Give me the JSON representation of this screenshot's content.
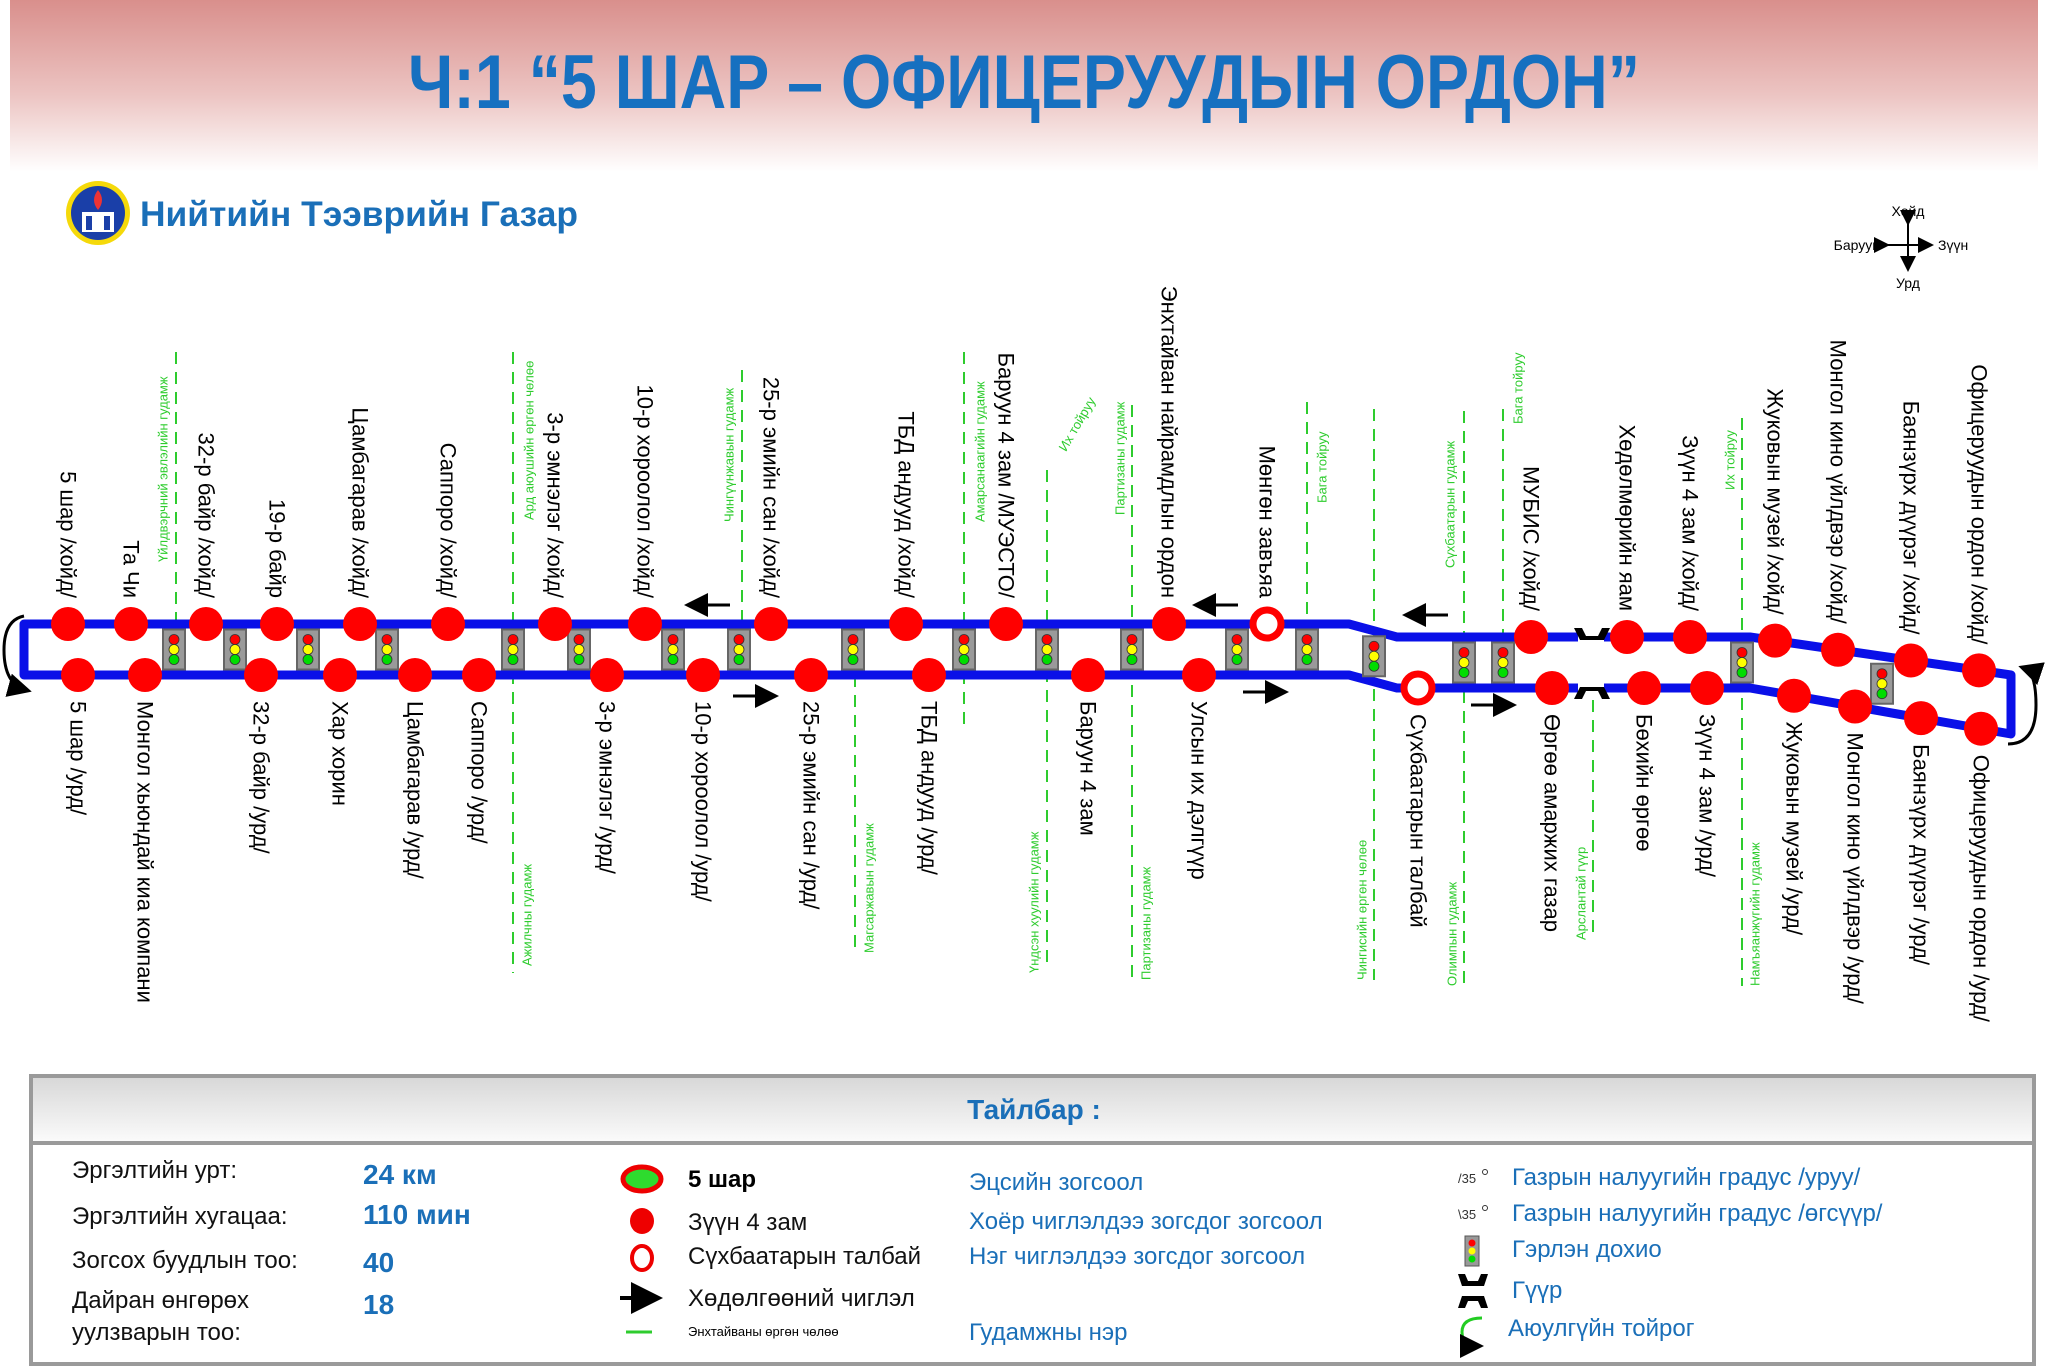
{
  "header": {
    "title": "Ч:1 “5 ШАР – ОФИЦЕРУУДЫН ОРДОН”",
    "organization": "Нийтийн Тээврийн Газар"
  },
  "compass": {
    "north": "Хойд",
    "south": "Урд",
    "west": "Баруун",
    "east": "Зүүн"
  },
  "colors": {
    "route": "#0a10e8",
    "stop": "#ff0000",
    "street_line": "#2ecc2e",
    "title": "#1670c0",
    "legend_text": "#1a6fb8"
  },
  "route": {
    "north_stops": [
      "5 шар /хойд/",
      "Та Чи",
      "32-р байр /хойд/",
      "19-р байр",
      "Цамбагарав /хойд/",
      "Саппоро /хойд/",
      "3-р эмнэлэг /хойд/",
      "10-р хороолол /хойд/",
      "25-р эмийн сан /хойд/",
      "ТБД андууд /хойд/",
      "Баруун 4 зам /МУЭСТО/",
      "Энхтайван найрамдлын ордон",
      "Мөнгөн завъяа",
      "МУБИС /хойд/",
      "Хөдөлмөрийн яам",
      "Зүүн 4 зам /хойд/",
      "Жуковын музей /хойд/",
      "Монгол кино үйлдвэр /хойд/",
      "Баянзүрх дүүрэг /хойд/",
      "Офицеруудын ордон /хойд/"
    ],
    "south_stops": [
      "5 шар /урд/",
      "Монгол хьюндай киа компани",
      "32-р байр /урд/",
      "Хар хорин",
      "Цамбагарав /урд/",
      "Саппоро /урд/",
      "3-р эмнэлэг /урд/",
      "10-р хороолол /урд/",
      "25-р эмийн сан /урд/",
      "ТБД андууд /урд/",
      "Баруун 4 зам",
      "Улсын их дэлгүүр",
      "Сүхбаатарын талбай",
      "Өргөө амаржих газар",
      "Бөхийн өргөө",
      "Зүүн 4 зам /урд/",
      "Жуковын музей /урд/",
      "Монгол кино үйлдвэр /урд/",
      "Баянзүрх дүүрэг /урд/",
      "Офицеруудын ордон /урд/"
    ],
    "streets_top": [
      "Үйлдвэрчний эвлэлийн гудамж",
      "Ард аюушийн өргөн чөлөө",
      "Чингүүнжавын гудамж",
      "Амарсанаагийн гудамж",
      "Их тойруу",
      "Партизаны гудамж",
      "Бага тойруу",
      "Сүхбаатарын гудамж",
      "Бага тойруу",
      "Их тойруу"
    ],
    "streets_bottom": [
      "Ажилчны гудамж",
      "Магсаржавын гудамж",
      "Үндсэн хуулийн гудамж",
      "Партизаны гудамж",
      "Чингисийн өргөн чөлөө",
      "Олимпын гудамж",
      "Арслантай гүүр",
      "Намъяанжүгийн гудамж"
    ]
  },
  "legend": {
    "title": "Тайлбар :",
    "stats": [
      {
        "label": "Эргэлтийн урт:",
        "value": "24 км"
      },
      {
        "label": "Эргэлтийн хугацаа:",
        "value": "110 мин"
      },
      {
        "label": "Зогсох буудлын тоо:",
        "value": "40"
      },
      {
        "label": "Дайран өнгөрөх",
        "label2": "уулзварын тоо:",
        "value": "18"
      }
    ],
    "symbols": [
      {
        "icon": "terminal-stop-icon",
        "label": "5 шар",
        "meaning": "Эцсийн зогсоол"
      },
      {
        "icon": "bidirectional-stop-icon",
        "label": "Зүүн 4 зам",
        "meaning": "Хоёр чиглэлдээ зогсдог зогсоол"
      },
      {
        "icon": "one-way-stop-icon",
        "label": "Сүхбаатарын талбай",
        "meaning": "Нэг чиглэлдээ зогсдог зогсоол"
      },
      {
        "icon": "direction-arrow-icon",
        "label": "Хөдөлгөөний чиглэл"
      },
      {
        "icon": "street-line-icon",
        "label": "Энхтайваны өргөн чөлөө",
        "meaning": "Гудамжны нэр"
      }
    ],
    "extras": [
      {
        "icon": "slope-down-icon",
        "mark": "/35",
        "label": "Газрын налуугийн градус /уруу/"
      },
      {
        "icon": "slope-up-icon",
        "mark": "\\35",
        "label": "Газрын налуугийн градус /өгсүүр/"
      },
      {
        "icon": "traffic-light-icon",
        "label": "Гэрлэн дохио"
      },
      {
        "icon": "bridge-icon",
        "label": "Гүүр"
      },
      {
        "icon": "safety-loop-icon",
        "label": "Аюулгүйн тойрог"
      }
    ]
  }
}
